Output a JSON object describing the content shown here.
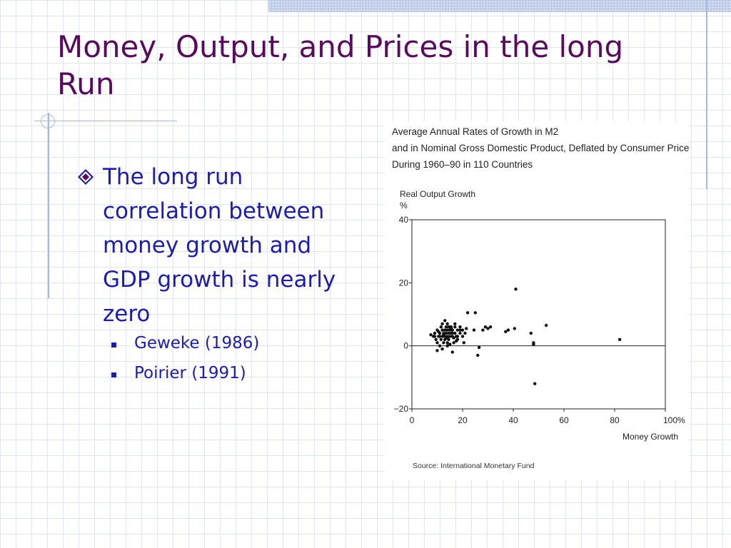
{
  "slide": {
    "title": "Money, Output, and Prices in the long Run",
    "bullet": "The long run correlation between money growth and GDP growth is nearly zero",
    "subbullets": [
      "Geweke (1986)",
      "Poirier (1991)"
    ]
  },
  "chart_data": {
    "type": "scatter",
    "title_lines": [
      "Average Annual Rates of Growth in M2",
      "and in Nominal Gross Domestic Product, Deflated by Consumer Prices",
      "During 1960–90 in 110 Countries"
    ],
    "ylabel": "Real Output Growth",
    "yunit": "%",
    "xlabel": "Money Growth",
    "xlim": [
      0,
      100
    ],
    "ylim": [
      -20,
      40
    ],
    "xticks": [
      "0",
      "20",
      "40",
      "60",
      "80",
      "100%"
    ],
    "yticks": [
      "40",
      "20",
      "0",
      "−20"
    ],
    "source": "Source: International Monetary Fund",
    "series": [
      {
        "x": [
          7.5,
          8.5,
          9,
          9.5,
          10,
          10,
          10.5,
          11,
          11,
          11.5,
          11.5,
          12,
          12,
          12,
          12.5,
          12.5,
          13,
          13,
          13,
          13,
          13.5,
          13.5,
          14,
          14,
          14,
          14,
          14.5,
          14.5,
          14.5,
          15,
          15,
          15,
          15.5,
          15.5,
          16,
          16,
          16,
          16.5,
          17,
          17,
          17.5,
          18,
          18,
          19,
          19,
          20,
          20,
          20.5,
          21,
          12,
          13,
          14,
          15,
          16,
          17,
          18,
          19,
          10,
          11,
          14,
          9,
          10.5,
          12.5,
          15.5,
          16.5,
          17.5,
          21.5,
          22,
          24.5,
          25,
          26,
          26.5,
          28,
          29,
          30,
          31,
          37,
          38,
          41,
          40.5,
          47,
          48,
          48,
          48.5,
          48,
          53,
          82
        ],
        "y": [
          3.5,
          3,
          4,
          2,
          1,
          5,
          3,
          4,
          0,
          6,
          2,
          3,
          5,
          7,
          4,
          1,
          3,
          5,
          2,
          8,
          4,
          6,
          3,
          5,
          1,
          7,
          4,
          2,
          6,
          5,
          3,
          0.5,
          4,
          6,
          3,
          5,
          -2,
          1,
          4,
          6,
          3,
          5,
          2,
          4,
          6,
          5,
          3,
          1,
          4,
          -1,
          2,
          0,
          6,
          4,
          7,
          3,
          5,
          -1.5,
          3,
          2.5,
          3,
          4.5,
          3.5,
          5.5,
          2.5,
          1.5,
          5.5,
          10.5,
          5,
          10.5,
          -3,
          -0.5,
          5,
          6,
          5.5,
          6,
          4.5,
          5,
          18,
          5.5,
          4,
          0.5,
          1,
          -12,
          0.5,
          6.5,
          2
        ]
      }
    ]
  }
}
